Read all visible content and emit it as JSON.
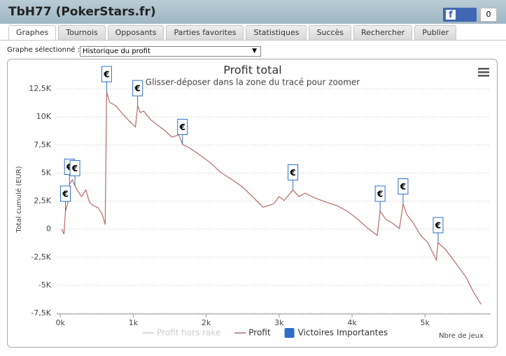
{
  "header": {
    "title": "TbH77 (PokerStars.fr)",
    "like": "Like",
    "like_count": "0"
  },
  "tabs": [
    "Graphes",
    "Tournois",
    "Opposants",
    "Parties favorites",
    "Statistiques",
    "Succès",
    "Rechercher",
    "Publier"
  ],
  "active_tab": 0,
  "selector": {
    "label": "Graphe sélectionné :",
    "value": "Historique du profit"
  },
  "chart_data": {
    "type": "line",
    "title": "Profit total",
    "subtitle": "Glisser-déposer dans la zone du tracé pour zoomer",
    "y_label": "Total cumulé (EUR)",
    "x_label": "Nbre de jeux",
    "xlim": [
      -50,
      5900
    ],
    "xticks": [
      {
        "value": 0,
        "label": "0k"
      },
      {
        "value": 1000,
        "label": "1k"
      },
      {
        "value": 2000,
        "label": "2k"
      },
      {
        "value": 3000,
        "label": "3k"
      },
      {
        "value": 4000,
        "label": "4k"
      },
      {
        "value": 5000,
        "label": "5k"
      }
    ],
    "ylim": [
      -7500,
      12500
    ],
    "yticks": [
      {
        "value": 12500,
        "label": "12,5K"
      },
      {
        "value": 10000,
        "label": "10K"
      },
      {
        "value": 7500,
        "label": "7,5K"
      },
      {
        "value": 5000,
        "label": "5K"
      },
      {
        "value": 2500,
        "label": "2,5K"
      },
      0,
      {
        "value": -2500,
        "label": "-2,5K"
      },
      {
        "value": -5000,
        "label": "-5K"
      },
      {
        "value": -7500,
        "label": "-7,5K"
      }
    ],
    "grid": true,
    "x": [
      20,
      50,
      70,
      100,
      125,
      165,
      190,
      230,
      290,
      350,
      400,
      450,
      520,
      575,
      615,
      635,
      675,
      760,
      855,
      950,
      1030,
      1060,
      1095,
      1145,
      1240,
      1335,
      1430,
      1530,
      1625,
      1675,
      1770,
      1915,
      2060,
      2200,
      2345,
      2490,
      2635,
      2780,
      2925,
      3000,
      3070,
      3190,
      3270,
      3355,
      3500,
      3645,
      3790,
      3935,
      4075,
      4220,
      4345,
      4385,
      4460,
      4560,
      4650,
      4700,
      4750,
      4845,
      4940,
      5040,
      5155,
      5180,
      5280,
      5425,
      5565,
      5660,
      5770
    ],
    "series": [
      {
        "name": "Profit hors rake",
        "color": "#cccccc",
        "visible": false
      },
      {
        "name": "Profit",
        "color": "#b86a6a",
        "visible": true,
        "values": [
          0,
          -440,
          1600,
          2250,
          4000,
          4400,
          4000,
          3500,
          2900,
          3500,
          2400,
          2100,
          1900,
          1300,
          400,
          12250,
          11300,
          11000,
          10250,
          9600,
          9100,
          11000,
          10400,
          10500,
          9750,
          9250,
          8800,
          8200,
          8400,
          7550,
          7250,
          6600,
          5900,
          5050,
          4450,
          3800,
          2900,
          1950,
          2250,
          2900,
          2550,
          3500,
          2900,
          3200,
          2750,
          2400,
          2100,
          1600,
          900,
          60,
          -560,
          1600,
          900,
          500,
          60,
          2250,
          1300,
          500,
          -560,
          -1200,
          -2750,
          -1200,
          -1800,
          -3050,
          -4300,
          -5550,
          -6700
        ]
      }
    ],
    "flags": {
      "name": "Victoires Importantes",
      "color": "#2f6fc7",
      "x": [
        70,
        125,
        200,
        635,
        1060,
        1675,
        3190,
        4385,
        4700,
        5180
      ],
      "titles": [
        "€",
        "€",
        "€",
        "€",
        "€",
        "€",
        "€",
        "€",
        "€",
        "€"
      ]
    }
  }
}
